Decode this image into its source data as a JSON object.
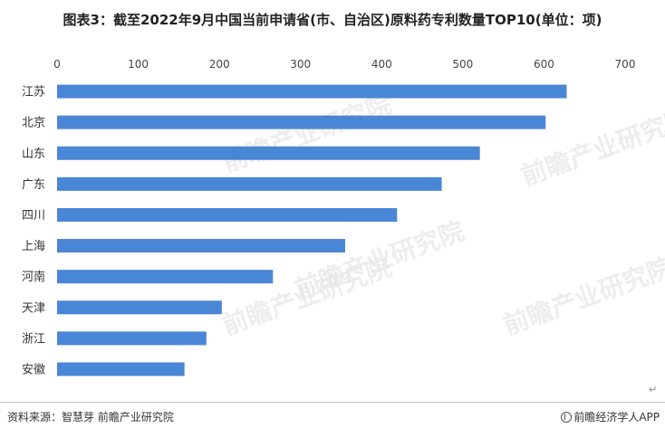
{
  "chart_data": {
    "type": "bar",
    "orientation": "horizontal",
    "title": "图表3：截至2022年9月中国当前申请省(市、自治区)原料药专利数量TOP10(单位：项)",
    "categories": [
      "江苏",
      "北京",
      "山东",
      "广东",
      "四川",
      "上海",
      "河南",
      "天津",
      "浙江",
      "安徽"
    ],
    "values": [
      628,
      602,
      521,
      474,
      419,
      355,
      266,
      203,
      184,
      157
    ],
    "xlim": [
      0,
      700
    ],
    "x_ticks": [
      "0",
      "100",
      "200",
      "300",
      "400",
      "500",
      "600",
      "700"
    ],
    "x_axis_position": "top",
    "xlabel": "",
    "ylabel": "",
    "grid": false,
    "legend": "none",
    "bar_color": "#4a86d6"
  },
  "footer": {
    "source": "资料来源：智慧芽 前瞻产业研究院",
    "brand": "前瞻经济学人APP"
  },
  "watermark": {
    "text": "前瞻产业研究院"
  },
  "colors": {
    "bar": "#4a86d6",
    "title": "#222222",
    "watermark": "#e6e6e6"
  }
}
